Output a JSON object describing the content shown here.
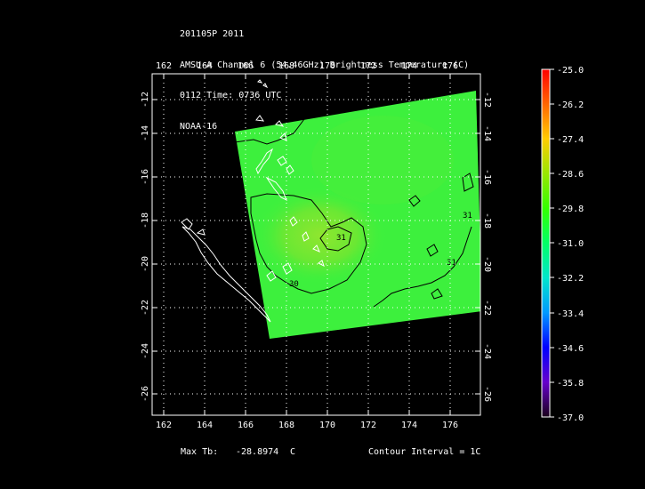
{
  "header": {
    "line1": "201105P 2011",
    "line2": "AMSU-A Channel 6 (54.46GHz) Brightness Temperature (C)",
    "line3": "0112 Time: 0736 UTC",
    "line4": "NOAA-16"
  },
  "axes": {
    "lon_ticks": [
      "162",
      "164",
      "166",
      "168",
      "170",
      "172",
      "174",
      "176"
    ],
    "lat_ticks": [
      "-12",
      "-14",
      "-16",
      "-18",
      "-20",
      "-22",
      "-24",
      "-26"
    ]
  },
  "colorbar": {
    "labels": [
      "-25.0",
      "-26.2",
      "-27.4",
      "-28.6",
      "-29.8",
      "-31.0",
      "-32.2",
      "-33.4",
      "-34.6",
      "-35.8",
      "-37.0"
    ],
    "colors": [
      "#ff0000",
      "#ff6600",
      "#ffcc00",
      "#99e600",
      "#33ff00",
      "#00ff66",
      "#00e6cc",
      "#0099ff",
      "#0000ff",
      "#6600cc",
      "#1a001a"
    ]
  },
  "contour_labels": [
    "31",
    "31",
    "30",
    "31"
  ],
  "footer": {
    "max_label": "Max Tb:",
    "max_value": "-28.8974",
    "max_unit": "C",
    "interval": "Contour Interval = 1C"
  },
  "colors": {
    "swath": "#3df03d",
    "swath_center": "#8fe62f",
    "coast": "#ffffff",
    "contour": "#000000"
  }
}
